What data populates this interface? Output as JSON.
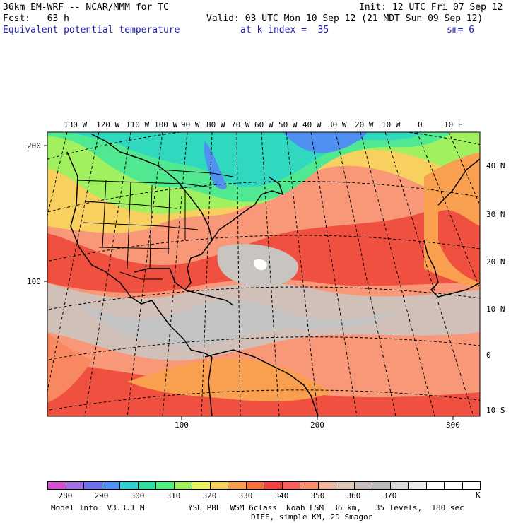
{
  "header": {
    "model": "36km EM-WRF -- NCAR/MMM for TC",
    "init": "Init: 12 UTC Fri 07 Sep 12",
    "fcst": "Fcst:   63 h",
    "valid": "Valid: 03 UTC Mon 10 Sep 12 (21 MDT Sun 09 Sep 12)",
    "field": "Equivalent potential temperature",
    "level": "at k-index =  35",
    "smooth": "sm= 6"
  },
  "top_lon_labels": [
    "130 W",
    "120 W",
    "110 W",
    "100 W",
    "90 W",
    "80 W",
    "70 W",
    "60 W",
    "50 W",
    "40 W",
    "30 W",
    "20 W",
    "10 W",
    "0",
    "10 E"
  ],
  "right_lat_labels": [
    "40 N",
    "30 N",
    "20 N",
    "10 N",
    "0",
    "10 S"
  ],
  "left_grid_labels": [
    "200",
    "100"
  ],
  "bottom_grid_labels": [
    "100",
    "200",
    "300"
  ],
  "colorbar": {
    "unit": "K",
    "labels": [
      "280",
      "290",
      "300",
      "310",
      "320",
      "330",
      "340",
      "350",
      "360",
      "370"
    ],
    "colors": [
      "#d050d0",
      "#a070e0",
      "#7070e8",
      "#5090f0",
      "#30d0d0",
      "#30e0a0",
      "#50f080",
      "#a0f060",
      "#e8f060",
      "#f8d060",
      "#f8a050",
      "#f87040",
      "#f04040",
      "#f86060",
      "#f89070",
      "#f0b8a0",
      "#e0c8b8",
      "#c8c0c0",
      "#bcbcbc",
      "#d8d8d8",
      "#ececec",
      "#ffffff",
      "#ffffff",
      "#ffffff"
    ]
  },
  "footer": {
    "model_info": "Model Info: V3.3.1 M",
    "physics": "YSU PBL  WSM 6class  Noah LSM  36 km,   35 levels,  180 sec",
    "diff": "DIFF, simple KM, 2D Smagor"
  }
}
